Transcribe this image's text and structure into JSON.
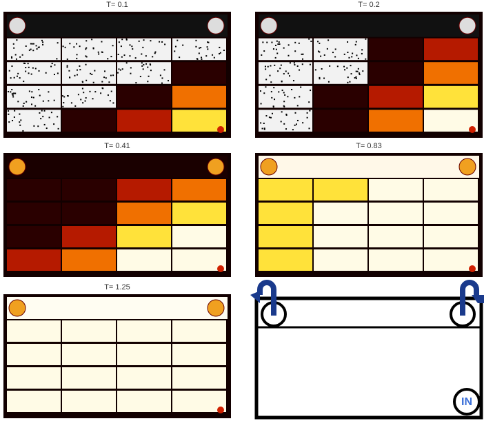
{
  "panels": [
    {
      "label": "T= 0.1"
    },
    {
      "label": "T= 0.2"
    },
    {
      "label": "T= 0.41"
    },
    {
      "label": "T= 0.83"
    },
    {
      "label": "T= 1.25"
    }
  ],
  "diagram": {
    "inlet_label": "IN"
  }
}
